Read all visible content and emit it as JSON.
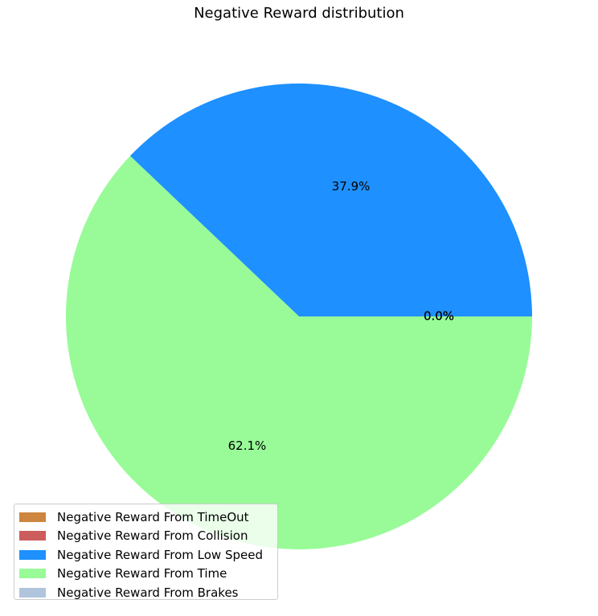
{
  "chart_data": {
    "type": "pie",
    "title": "Negative Reward distribution",
    "slices": [
      {
        "label": "Negative Reward From TimeOut",
        "value": 0.0,
        "pct_label": "0.0%",
        "color": "#CD853F"
      },
      {
        "label": "Negative Reward From Collision",
        "value": 0.0,
        "pct_label": "0.0%",
        "color": "#CD5C5C"
      },
      {
        "label": "Negative Reward From Low Speed",
        "value": 37.9,
        "pct_label": "37.9%",
        "color": "#1E90FF"
      },
      {
        "label": "Negative Reward From Time",
        "value": 62.1,
        "pct_label": "62.1%",
        "color": "#98FB98"
      },
      {
        "label": "Negative Reward From Brakes",
        "value": 0.0,
        "pct_label": "0.0%",
        "color": "#B0C4DE"
      }
    ],
    "start_angle_deg": 0,
    "direction": "counterclockwise",
    "legend_position": "lower-left"
  }
}
